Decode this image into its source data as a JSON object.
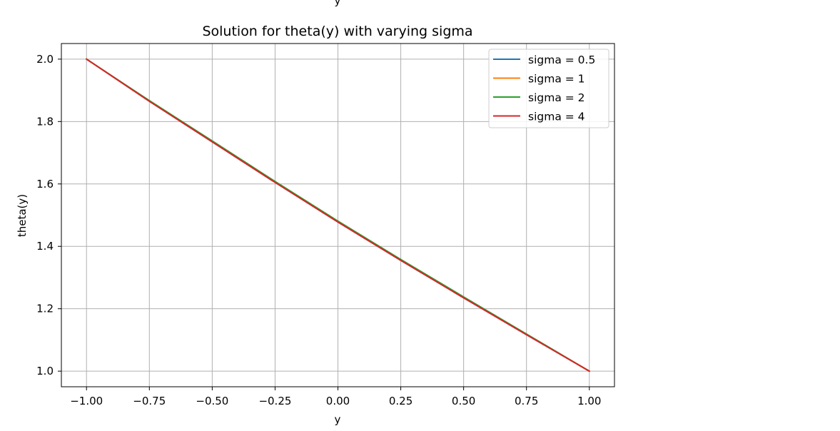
{
  "top_fragment": "y",
  "chart_data": {
    "type": "line",
    "title": "Solution for theta(y) with varying sigma",
    "xlabel": "y",
    "ylabel": "theta(y)",
    "xlim": [
      -1.1,
      1.1
    ],
    "ylim": [
      0.95,
      2.05
    ],
    "xticks": [
      -1.0,
      -0.75,
      -0.5,
      -0.25,
      0.0,
      0.25,
      0.5,
      0.75,
      1.0
    ],
    "xtick_labels": [
      "−1.00",
      "−0.75",
      "−0.50",
      "−0.25",
      "0.00",
      "0.25",
      "0.50",
      "0.75",
      "1.00"
    ],
    "yticks": [
      1.0,
      1.2,
      1.4,
      1.6,
      1.8,
      2.0
    ],
    "ytick_labels": [
      "1.0",
      "1.2",
      "1.4",
      "1.6",
      "1.8",
      "2.0"
    ],
    "grid": true,
    "legend_position": "top-right",
    "series": [
      {
        "name": "sigma = 0.5",
        "color": "#1f77b4",
        "x": [
          -1.0,
          -0.75,
          -0.5,
          -0.25,
          0.0,
          0.25,
          0.5,
          0.75,
          1.0
        ],
        "y": [
          2.0,
          1.865,
          1.735,
          1.605,
          1.478,
          1.355,
          1.235,
          1.117,
          1.0
        ]
      },
      {
        "name": "sigma = 1",
        "color": "#ff7f0e",
        "x": [
          -1.0,
          -0.75,
          -0.5,
          -0.25,
          0.0,
          0.25,
          0.5,
          0.75,
          1.0
        ],
        "y": [
          2.0,
          1.866,
          1.736,
          1.606,
          1.479,
          1.356,
          1.236,
          1.118,
          1.0
        ]
      },
      {
        "name": "sigma = 2",
        "color": "#2ca02c",
        "x": [
          -1.0,
          -0.75,
          -0.5,
          -0.25,
          0.0,
          0.25,
          0.5,
          0.75,
          1.0
        ],
        "y": [
          2.0,
          1.867,
          1.738,
          1.608,
          1.481,
          1.358,
          1.238,
          1.119,
          1.0
        ]
      },
      {
        "name": "sigma = 4",
        "color": "#d62728",
        "x": [
          -1.0,
          -0.75,
          -0.5,
          -0.25,
          0.0,
          0.25,
          0.5,
          0.75,
          1.0
        ],
        "y": [
          2.0,
          1.865,
          1.735,
          1.605,
          1.478,
          1.355,
          1.235,
          1.117,
          1.0
        ]
      }
    ]
  }
}
